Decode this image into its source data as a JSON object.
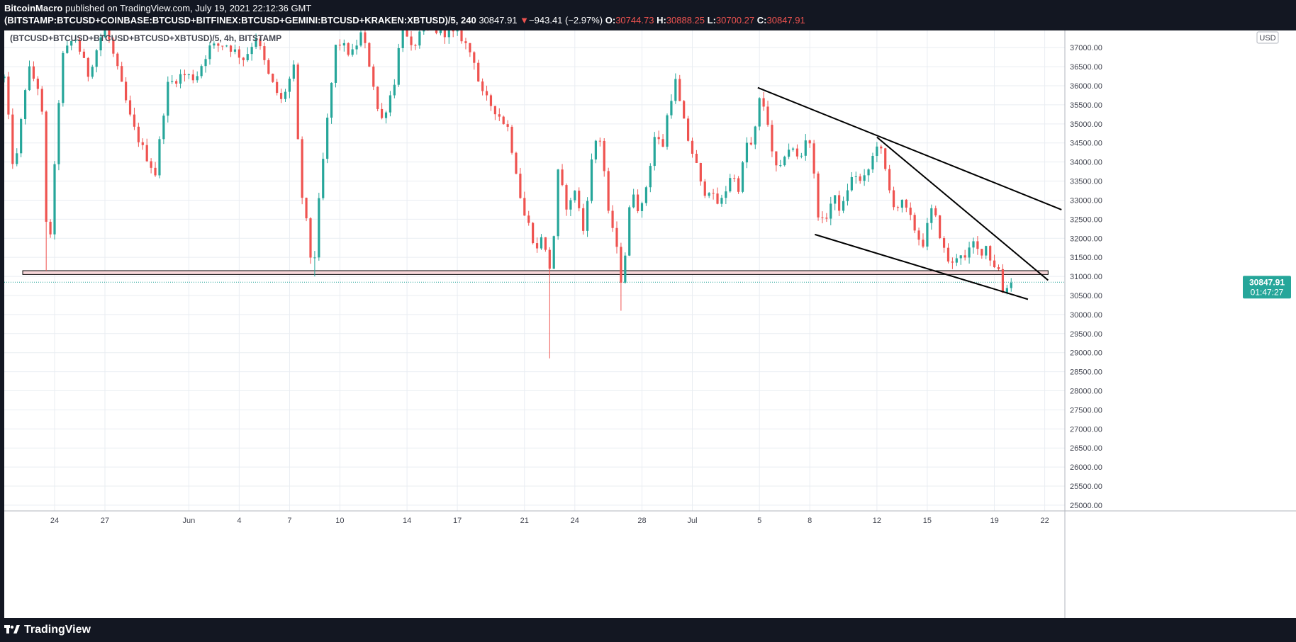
{
  "header": {
    "author": "BitcoinMacro",
    "published": "published on TradingView.com, July 19, 2021 22:12:36 GMT",
    "symbol": "(BITSTAMP:BTCUSD+COINBASE:BTCUSD+BITFINEX:BTCUSD+GEMINI:BTCUSD+KRAKEN:XBTUSD)/5, 240",
    "last": "30847.91",
    "change_arrow": "▼",
    "change": "−943.41 (−2.97%)",
    "o_label": "O:",
    "o": "30744.73",
    "h_label": "H:",
    "h": "30888.25",
    "l_label": "L:",
    "l": "30700.27",
    "c_label": "C:",
    "c": "30847.91"
  },
  "legend": "(BTCUSD+BTCUSD+BTCUSD+BTCUSD+XBTUSD)/5, 4h, BITSTAMP",
  "currency": "USD",
  "price_tag": {
    "price": "30847.91",
    "countdown": "01:47:27"
  },
  "footer": {
    "brand": "TradingView",
    "logo_icon": "tradingview-logo-icon"
  },
  "colors": {
    "up": "#26a69a",
    "down": "#ef5350",
    "background": "#ffffff",
    "frame": "#131722",
    "zone_fill": "#f8d7da",
    "trendline": "#000000"
  },
  "chart_data": {
    "type": "candlestick",
    "y_axis": {
      "ticks": [
        25000,
        25500,
        26000,
        26500,
        27000,
        27500,
        28000,
        28500,
        29000,
        29500,
        30000,
        30500,
        31000,
        31500,
        32000,
        32500,
        33000,
        33500,
        34000,
        34500,
        35000,
        35500,
        36000,
        36500,
        37000
      ],
      "ylim": [
        24850,
        37450
      ]
    },
    "x_axis": {
      "labels": [
        {
          "text": "24",
          "day": 3
        },
        {
          "text": "27",
          "day": 6
        },
        {
          "text": "Jun",
          "day": 11
        },
        {
          "text": "4",
          "day": 14
        },
        {
          "text": "7",
          "day": 17
        },
        {
          "text": "10",
          "day": 20
        },
        {
          "text": "14",
          "day": 24
        },
        {
          "text": "17",
          "day": 27
        },
        {
          "text": "21",
          "day": 31
        },
        {
          "text": "24",
          "day": 34
        },
        {
          "text": "28",
          "day": 38
        },
        {
          "text": "Jul",
          "day": 41
        },
        {
          "text": "5",
          "day": 45
        },
        {
          "text": "8",
          "day": 48
        },
        {
          "text": "12",
          "day": 52
        },
        {
          "text": "15",
          "day": 55
        },
        {
          "text": "19",
          "day": 59
        },
        {
          "text": "22",
          "day": 62
        }
      ],
      "xlim": [
        0,
        63.2
      ]
    },
    "support_zone": {
      "day_start": 1.1,
      "day_end": 62.2,
      "price_low": 31050,
      "price_high": 31150
    },
    "last_price_line": 30847.91,
    "trendlines": [
      {
        "name": "upper",
        "d1": 44.9,
        "p1": 35950,
        "d2": 63.0,
        "p2": 32750
      },
      {
        "name": "steep",
        "d1": 52.0,
        "p1": 34650,
        "d2": 62.2,
        "p2": 30900
      },
      {
        "name": "lower",
        "d1": 48.3,
        "p1": 32100,
        "d2": 61.0,
        "p2": 30400
      }
    ],
    "anchors": [
      [
        0,
        36200
      ],
      [
        0.6,
        33600
      ],
      [
        1.4,
        36500
      ],
      [
        2.2,
        35800
      ],
      [
        2.6,
        31200
      ],
      [
        2.9,
        33100
      ],
      [
        3.4,
        36700
      ],
      [
        4.2,
        37300
      ],
      [
        5.0,
        36300
      ],
      [
        6.0,
        37600
      ],
      [
        7.0,
        36000
      ],
      [
        7.6,
        35000
      ],
      [
        8.3,
        34300
      ],
      [
        9.0,
        33700
      ],
      [
        9.7,
        36000
      ],
      [
        10.6,
        36300
      ],
      [
        11.4,
        36200
      ],
      [
        12.2,
        37000
      ],
      [
        13.2,
        37100
      ],
      [
        14.3,
        36700
      ],
      [
        15.0,
        37300
      ],
      [
        15.8,
        36200
      ],
      [
        16.5,
        35600
      ],
      [
        17.3,
        36500
      ],
      [
        17.6,
        33500
      ],
      [
        18.0,
        32400
      ],
      [
        18.4,
        31000
      ],
      [
        18.8,
        33200
      ],
      [
        19.3,
        35300
      ],
      [
        19.8,
        37200
      ],
      [
        20.7,
        36800
      ],
      [
        21.3,
        37400
      ],
      [
        21.9,
        36300
      ],
      [
        22.4,
        35000
      ],
      [
        22.9,
        35600
      ],
      [
        23.3,
        36200
      ],
      [
        23.7,
        37700
      ],
      [
        24.2,
        36900
      ],
      [
        25.0,
        37500
      ],
      [
        26.3,
        37400
      ],
      [
        27.2,
        37300
      ],
      [
        28.0,
        36700
      ],
      [
        28.4,
        35800
      ],
      [
        29.2,
        35400
      ],
      [
        30.0,
        34900
      ],
      [
        30.5,
        33800
      ],
      [
        30.9,
        32700
      ],
      [
        31.4,
        32200
      ],
      [
        31.7,
        31600
      ],
      [
        32.0,
        32100
      ],
      [
        32.2,
        31700
      ],
      [
        32.6,
        31100
      ],
      [
        33.0,
        33700
      ],
      [
        33.6,
        32700
      ],
      [
        34.0,
        33300
      ],
      [
        34.5,
        32200
      ],
      [
        35.0,
        34000
      ],
      [
        35.4,
        34900
      ],
      [
        35.7,
        34000
      ],
      [
        36.0,
        32600
      ],
      [
        36.4,
        32100
      ],
      [
        36.7,
        30800
      ],
      [
        37.0,
        31600
      ],
      [
        37.4,
        33400
      ],
      [
        37.9,
        32600
      ],
      [
        38.4,
        33700
      ],
      [
        38.8,
        34800
      ],
      [
        39.2,
        34300
      ],
      [
        39.6,
        35500
      ],
      [
        40.0,
        36100
      ],
      [
        40.4,
        35200
      ],
      [
        40.8,
        34500
      ],
      [
        41.2,
        34000
      ],
      [
        41.6,
        33200
      ],
      [
        42.0,
        33300
      ],
      [
        42.4,
        32900
      ],
      [
        42.8,
        33000
      ],
      [
        43.3,
        33700
      ],
      [
        43.8,
        33300
      ],
      [
        44.2,
        34500
      ],
      [
        44.6,
        34400
      ],
      [
        45.0,
        35600
      ],
      [
        45.4,
        35400
      ],
      [
        45.8,
        34000
      ],
      [
        46.2,
        33700
      ],
      [
        46.6,
        34400
      ],
      [
        47.0,
        34300
      ],
      [
        47.4,
        34000
      ],
      [
        47.9,
        34900
      ],
      [
        48.2,
        33800
      ],
      [
        48.6,
        32300
      ],
      [
        49.0,
        32600
      ],
      [
        49.4,
        33100
      ],
      [
        49.9,
        32700
      ],
      [
        50.3,
        33400
      ],
      [
        50.7,
        33700
      ],
      [
        51.1,
        33400
      ],
      [
        51.6,
        33900
      ],
      [
        52.0,
        34500
      ],
      [
        52.3,
        34200
      ],
      [
        52.7,
        33300
      ],
      [
        53.1,
        32800
      ],
      [
        53.5,
        32900
      ],
      [
        53.9,
        32600
      ],
      [
        54.3,
        32200
      ],
      [
        54.7,
        31800
      ],
      [
        55.0,
        32300
      ],
      [
        55.3,
        32800
      ],
      [
        55.7,
        32200
      ],
      [
        56.1,
        31500
      ],
      [
        56.5,
        31300
      ],
      [
        56.9,
        31700
      ],
      [
        57.3,
        31400
      ],
      [
        57.7,
        31900
      ],
      [
        58.1,
        31600
      ],
      [
        58.5,
        31800
      ],
      [
        58.9,
        31300
      ],
      [
        59.2,
        31300
      ],
      [
        59.5,
        30600
      ],
      [
        59.8,
        30800
      ],
      [
        60.1,
        30850
      ]
    ]
  }
}
